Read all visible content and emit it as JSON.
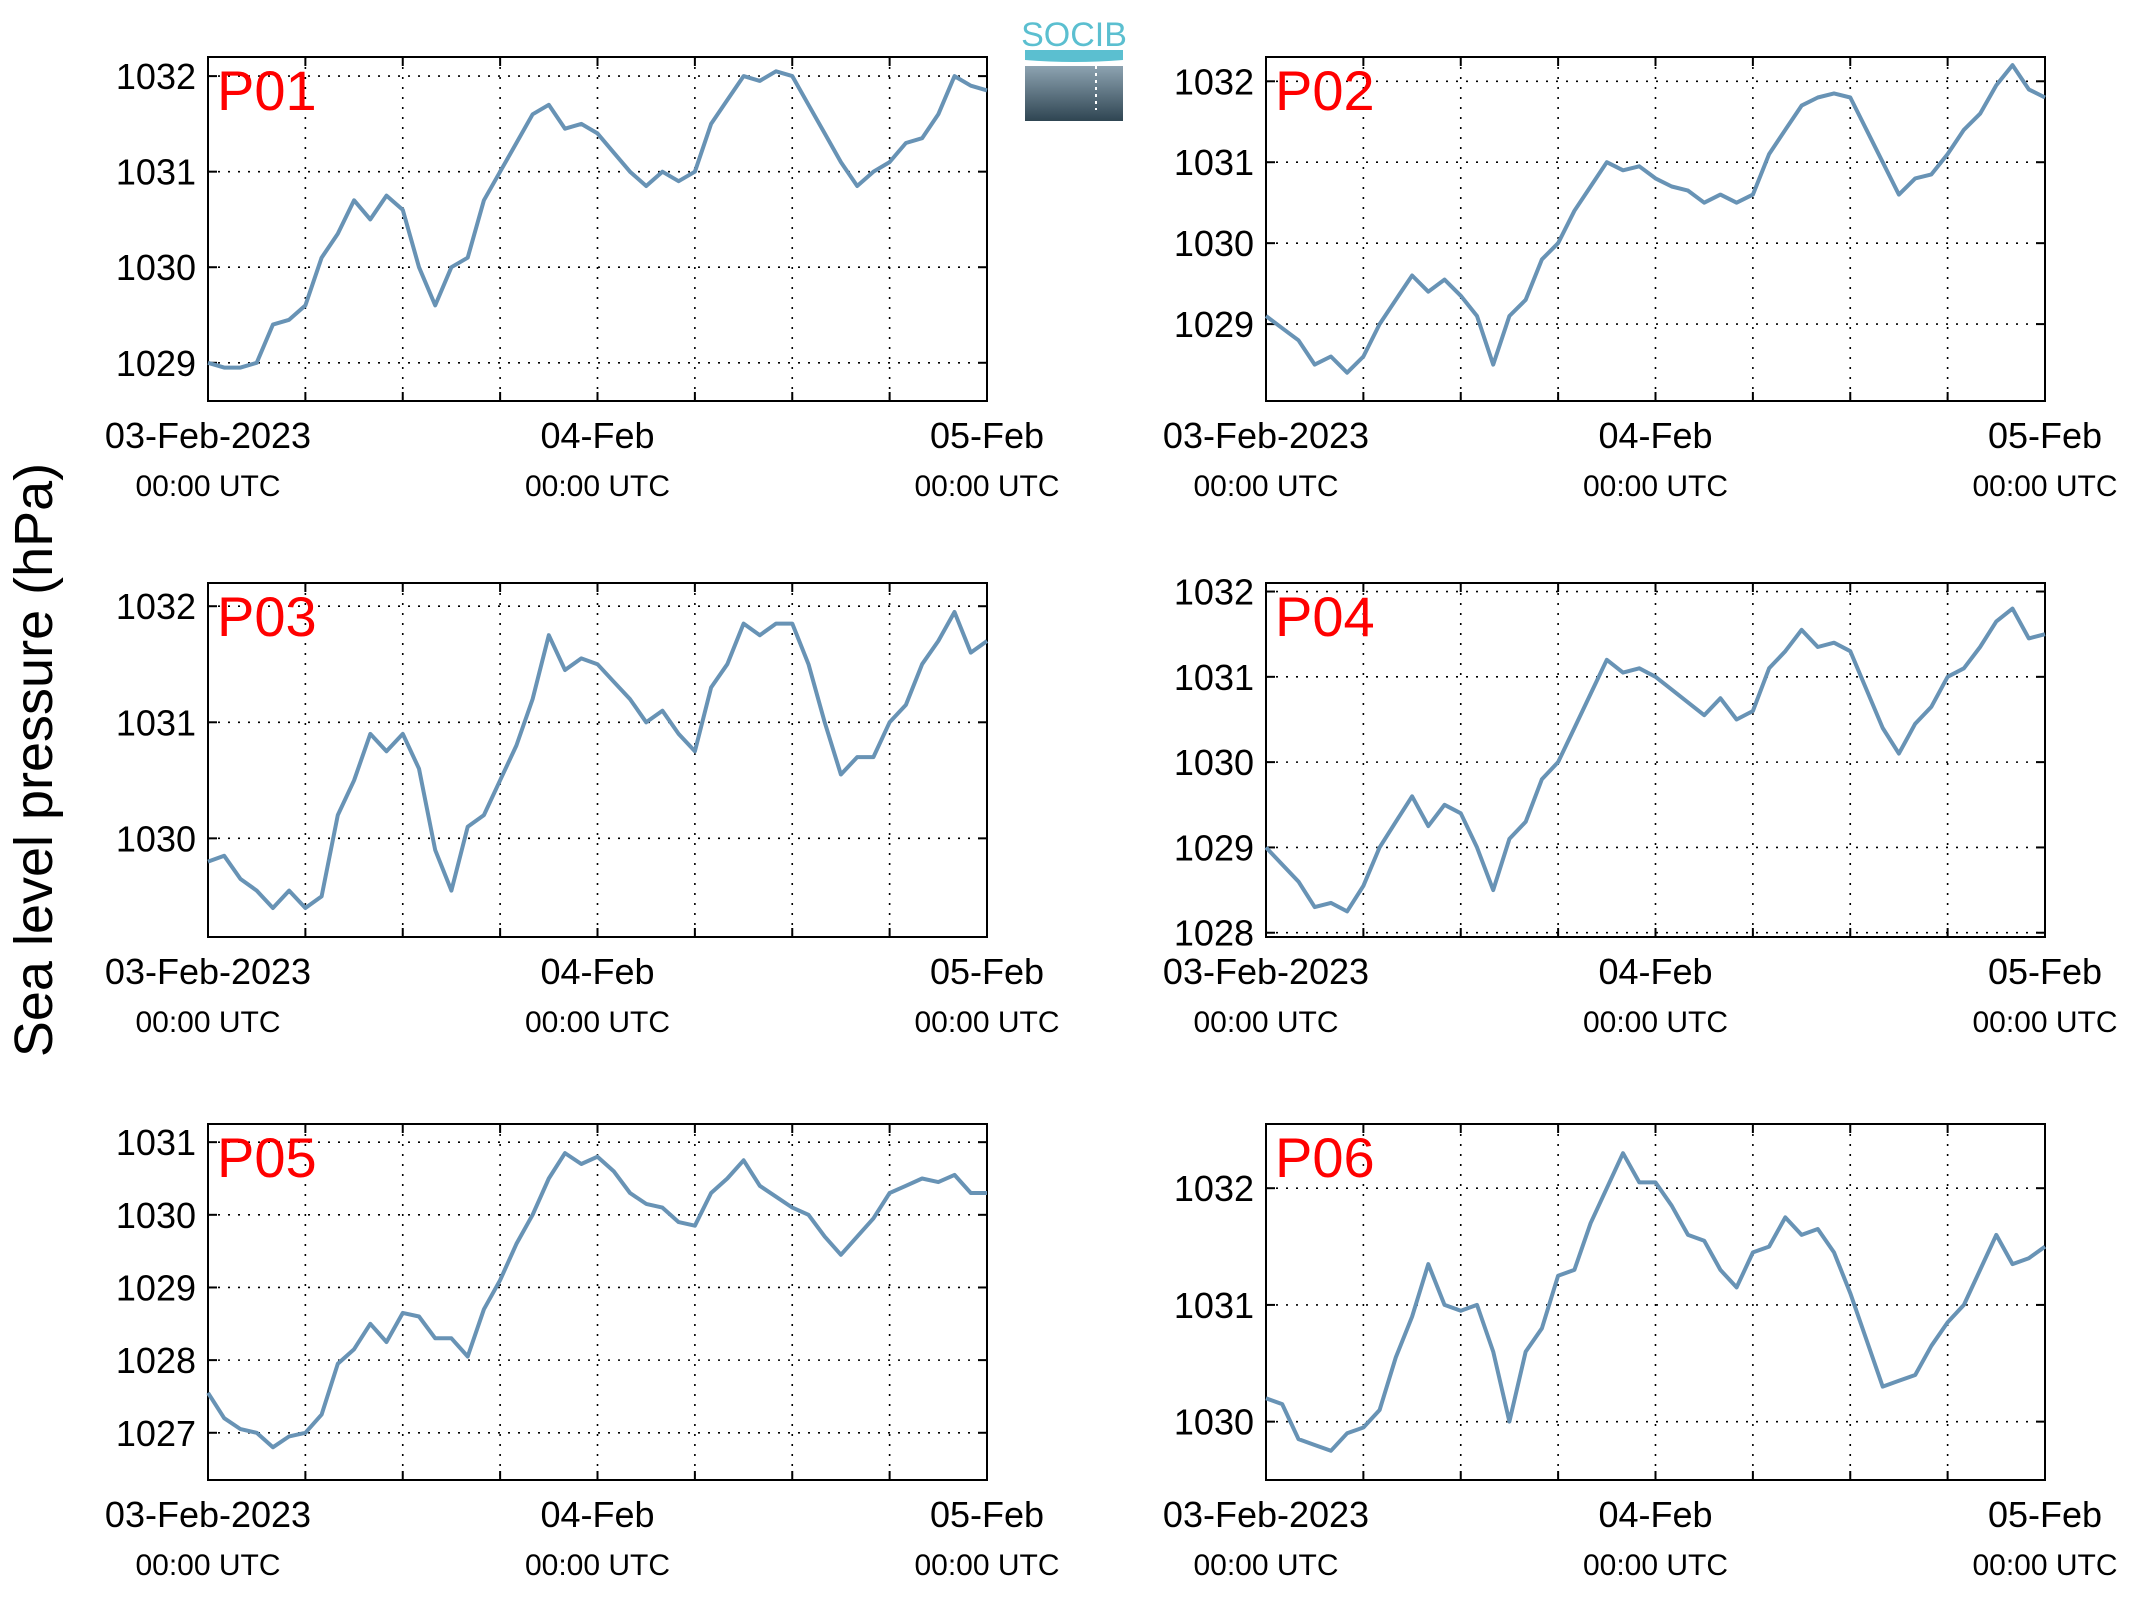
{
  "figure": {
    "ylabel": "Sea level pressure (hPa)",
    "logo_text": "SOCIB",
    "line_color": "#6893b5",
    "label_color": "#ff0000"
  },
  "chart_data": [
    {
      "type": "line",
      "label": "P01",
      "x_ticks": [
        {
          "line1": "03-Feb-2023",
          "line2": "00:00 UTC",
          "hours": 0
        },
        {
          "line1": "04-Feb",
          "line2": "00:00 UTC",
          "hours": 24
        },
        {
          "line1": "05-Feb",
          "line2": "00:00 UTC",
          "hours": 48
        }
      ],
      "xlim_hours": [
        0,
        48
      ],
      "ylim": [
        1028.6,
        1032.2
      ],
      "yticks": [
        1029,
        1030,
        1031,
        1032
      ],
      "grid": true,
      "series": [
        {
          "x": [
            0,
            1,
            2,
            3,
            4,
            5,
            6,
            7,
            8,
            9,
            10,
            11,
            12,
            13,
            14,
            15,
            16,
            17,
            18,
            19,
            20,
            21,
            22,
            23,
            24,
            25,
            26,
            27,
            28,
            29,
            30,
            31,
            32,
            33,
            34,
            35,
            36,
            37,
            38,
            39,
            40,
            41,
            42,
            43,
            44,
            45,
            46,
            47,
            48
          ],
          "y": [
            1029.0,
            1028.95,
            1028.95,
            1029.0,
            1029.4,
            1029.45,
            1029.6,
            1030.1,
            1030.35,
            1030.7,
            1030.5,
            1030.75,
            1030.6,
            1030.0,
            1029.6,
            1030.0,
            1030.1,
            1030.7,
            1031.0,
            1031.3,
            1031.6,
            1031.7,
            1031.45,
            1031.5,
            1031.4,
            1031.2,
            1031.0,
            1030.85,
            1031.0,
            1030.9,
            1031.0,
            1031.5,
            1031.75,
            1032.0,
            1031.95,
            1032.05,
            1032.0,
            1031.7,
            1031.4,
            1031.1,
            1030.85,
            1031.0,
            1031.1,
            1031.3,
            1031.35,
            1031.6,
            1032.0,
            1031.9,
            1031.85
          ]
        }
      ]
    },
    {
      "type": "line",
      "label": "P02",
      "x_ticks": [
        {
          "line1": "03-Feb-2023",
          "line2": "00:00 UTC",
          "hours": 0
        },
        {
          "line1": "04-Feb",
          "line2": "00:00 UTC",
          "hours": 24
        },
        {
          "line1": "05-Feb",
          "line2": "00:00 UTC",
          "hours": 48
        }
      ],
      "xlim_hours": [
        0,
        48
      ],
      "ylim": [
        1028.05,
        1032.3
      ],
      "yticks": [
        1029,
        1030,
        1031,
        1032
      ],
      "grid": true,
      "series": [
        {
          "x": [
            0,
            1,
            2,
            3,
            4,
            5,
            6,
            7,
            8,
            9,
            10,
            11,
            12,
            13,
            14,
            15,
            16,
            17,
            18,
            19,
            20,
            21,
            22,
            23,
            24,
            25,
            26,
            27,
            28,
            29,
            30,
            31,
            32,
            33,
            34,
            35,
            36,
            37,
            38,
            39,
            40,
            41,
            42,
            43,
            44,
            45,
            46,
            47,
            48
          ],
          "y": [
            1029.1,
            1028.95,
            1028.8,
            1028.5,
            1028.6,
            1028.4,
            1028.6,
            1029.0,
            1029.3,
            1029.6,
            1029.4,
            1029.55,
            1029.35,
            1029.1,
            1028.5,
            1029.1,
            1029.3,
            1029.8,
            1030.0,
            1030.4,
            1030.7,
            1031.0,
            1030.9,
            1030.95,
            1030.8,
            1030.7,
            1030.65,
            1030.5,
            1030.6,
            1030.5,
            1030.6,
            1031.1,
            1031.4,
            1031.7,
            1031.8,
            1031.85,
            1031.8,
            1031.4,
            1031.0,
            1030.6,
            1030.8,
            1030.85,
            1031.1,
            1031.4,
            1031.6,
            1031.95,
            1032.2,
            1031.9,
            1031.8
          ]
        }
      ]
    },
    {
      "type": "line",
      "label": "P03",
      "x_ticks": [
        {
          "line1": "03-Feb-2023",
          "line2": "00:00 UTC",
          "hours": 0
        },
        {
          "line1": "04-Feb",
          "line2": "00:00 UTC",
          "hours": 24
        },
        {
          "line1": "05-Feb",
          "line2": "00:00 UTC",
          "hours": 48
        }
      ],
      "xlim_hours": [
        0,
        48
      ],
      "ylim": [
        1029.15,
        1032.2
      ],
      "yticks": [
        1030,
        1031,
        1032
      ],
      "grid": true,
      "series": [
        {
          "x": [
            0,
            1,
            2,
            3,
            4,
            5,
            6,
            7,
            8,
            9,
            10,
            11,
            12,
            13,
            14,
            15,
            16,
            17,
            18,
            19,
            20,
            21,
            22,
            23,
            24,
            25,
            26,
            27,
            28,
            29,
            30,
            31,
            32,
            33,
            34,
            35,
            36,
            37,
            38,
            39,
            40,
            41,
            42,
            43,
            44,
            45,
            46,
            47,
            48
          ],
          "y": [
            1029.8,
            1029.85,
            1029.65,
            1029.55,
            1029.4,
            1029.55,
            1029.4,
            1029.5,
            1030.2,
            1030.5,
            1030.9,
            1030.75,
            1030.9,
            1030.6,
            1029.9,
            1029.55,
            1030.1,
            1030.2,
            1030.5,
            1030.8,
            1031.2,
            1031.75,
            1031.45,
            1031.55,
            1031.5,
            1031.35,
            1031.2,
            1031.0,
            1031.1,
            1030.9,
            1030.75,
            1031.3,
            1031.5,
            1031.85,
            1031.75,
            1031.85,
            1031.85,
            1031.5,
            1031.0,
            1030.55,
            1030.7,
            1030.7,
            1031.0,
            1031.15,
            1031.5,
            1031.7,
            1031.95,
            1031.6,
            1031.7
          ]
        }
      ]
    },
    {
      "type": "line",
      "label": "P04",
      "x_ticks": [
        {
          "line1": "03-Feb-2023",
          "line2": "00:00 UTC",
          "hours": 0
        },
        {
          "line1": "04-Feb",
          "line2": "00:00 UTC",
          "hours": 24
        },
        {
          "line1": "05-Feb",
          "line2": "00:00 UTC",
          "hours": 48
        }
      ],
      "xlim_hours": [
        0,
        48
      ],
      "ylim": [
        1027.95,
        1032.1
      ],
      "yticks": [
        1028,
        1029,
        1030,
        1031,
        1032
      ],
      "grid": true,
      "series": [
        {
          "x": [
            0,
            1,
            2,
            3,
            4,
            5,
            6,
            7,
            8,
            9,
            10,
            11,
            12,
            13,
            14,
            15,
            16,
            17,
            18,
            19,
            20,
            21,
            22,
            23,
            24,
            25,
            26,
            27,
            28,
            29,
            30,
            31,
            32,
            33,
            34,
            35,
            36,
            37,
            38,
            39,
            40,
            41,
            42,
            43,
            44,
            45,
            46,
            47,
            48
          ],
          "y": [
            1029.0,
            1028.8,
            1028.6,
            1028.3,
            1028.35,
            1028.25,
            1028.55,
            1029.0,
            1029.3,
            1029.6,
            1029.25,
            1029.5,
            1029.4,
            1029.0,
            1028.5,
            1029.1,
            1029.3,
            1029.8,
            1030.0,
            1030.4,
            1030.8,
            1031.2,
            1031.05,
            1031.1,
            1031.0,
            1030.85,
            1030.7,
            1030.55,
            1030.75,
            1030.5,
            1030.6,
            1031.1,
            1031.3,
            1031.55,
            1031.35,
            1031.4,
            1031.3,
            1030.85,
            1030.4,
            1030.1,
            1030.45,
            1030.65,
            1031.0,
            1031.1,
            1031.35,
            1031.65,
            1031.8,
            1031.45,
            1031.5
          ]
        }
      ]
    },
    {
      "type": "line",
      "label": "P05",
      "x_ticks": [
        {
          "line1": "03-Feb-2023",
          "line2": "00:00 UTC",
          "hours": 0
        },
        {
          "line1": "04-Feb",
          "line2": "00:00 UTC",
          "hours": 24
        },
        {
          "line1": "05-Feb",
          "line2": "00:00 UTC",
          "hours": 48
        }
      ],
      "xlim_hours": [
        0,
        48
      ],
      "ylim": [
        1026.35,
        1031.25
      ],
      "yticks": [
        1027,
        1028,
        1029,
        1030,
        1031
      ],
      "grid": true,
      "series": [
        {
          "x": [
            0,
            1,
            2,
            3,
            4,
            5,
            6,
            7,
            8,
            9,
            10,
            11,
            12,
            13,
            14,
            15,
            16,
            17,
            18,
            19,
            20,
            21,
            22,
            23,
            24,
            25,
            26,
            27,
            28,
            29,
            30,
            31,
            32,
            33,
            34,
            35,
            36,
            37,
            38,
            39,
            40,
            41,
            42,
            43,
            44,
            45,
            46,
            47,
            48
          ],
          "y": [
            1027.55,
            1027.2,
            1027.05,
            1027.0,
            1026.8,
            1026.95,
            1027.0,
            1027.25,
            1027.95,
            1028.15,
            1028.5,
            1028.25,
            1028.65,
            1028.6,
            1028.3,
            1028.3,
            1028.05,
            1028.7,
            1029.1,
            1029.6,
            1030.0,
            1030.5,
            1030.85,
            1030.7,
            1030.8,
            1030.6,
            1030.3,
            1030.15,
            1030.1,
            1029.9,
            1029.85,
            1030.3,
            1030.5,
            1030.75,
            1030.4,
            1030.25,
            1030.1,
            1030.0,
            1029.7,
            1029.45,
            1029.7,
            1029.95,
            1030.3,
            1030.4,
            1030.5,
            1030.45,
            1030.55,
            1030.3,
            1030.3
          ]
        }
      ]
    },
    {
      "type": "line",
      "label": "P06",
      "x_ticks": [
        {
          "line1": "03-Feb-2023",
          "line2": "00:00 UTC",
          "hours": 0
        },
        {
          "line1": "04-Feb",
          "line2": "00:00 UTC",
          "hours": 24
        },
        {
          "line1": "05-Feb",
          "line2": "00:00 UTC",
          "hours": 48
        }
      ],
      "xlim_hours": [
        0,
        48
      ],
      "ylim": [
        1029.5,
        1032.55
      ],
      "yticks": [
        1030,
        1031,
        1032
      ],
      "grid": true,
      "series": [
        {
          "x": [
            0,
            1,
            2,
            3,
            4,
            5,
            6,
            7,
            8,
            9,
            10,
            11,
            12,
            13,
            14,
            15,
            16,
            17,
            18,
            19,
            20,
            21,
            22,
            23,
            24,
            25,
            26,
            27,
            28,
            29,
            30,
            31,
            32,
            33,
            34,
            35,
            36,
            37,
            38,
            39,
            40,
            41,
            42,
            43,
            44,
            45,
            46,
            47,
            48
          ],
          "y": [
            1030.2,
            1030.15,
            1029.85,
            1029.8,
            1029.75,
            1029.9,
            1029.95,
            1030.1,
            1030.55,
            1030.9,
            1031.35,
            1031.0,
            1030.95,
            1031.0,
            1030.6,
            1030.0,
            1030.6,
            1030.8,
            1031.25,
            1031.3,
            1031.7,
            1032.0,
            1032.3,
            1032.05,
            1032.05,
            1031.85,
            1031.6,
            1031.55,
            1031.3,
            1031.15,
            1031.45,
            1031.5,
            1031.75,
            1031.6,
            1031.65,
            1031.45,
            1031.1,
            1030.7,
            1030.3,
            1030.35,
            1030.4,
            1030.65,
            1030.85,
            1031.0,
            1031.3,
            1031.6,
            1031.35,
            1031.4,
            1031.5
          ]
        }
      ]
    }
  ]
}
